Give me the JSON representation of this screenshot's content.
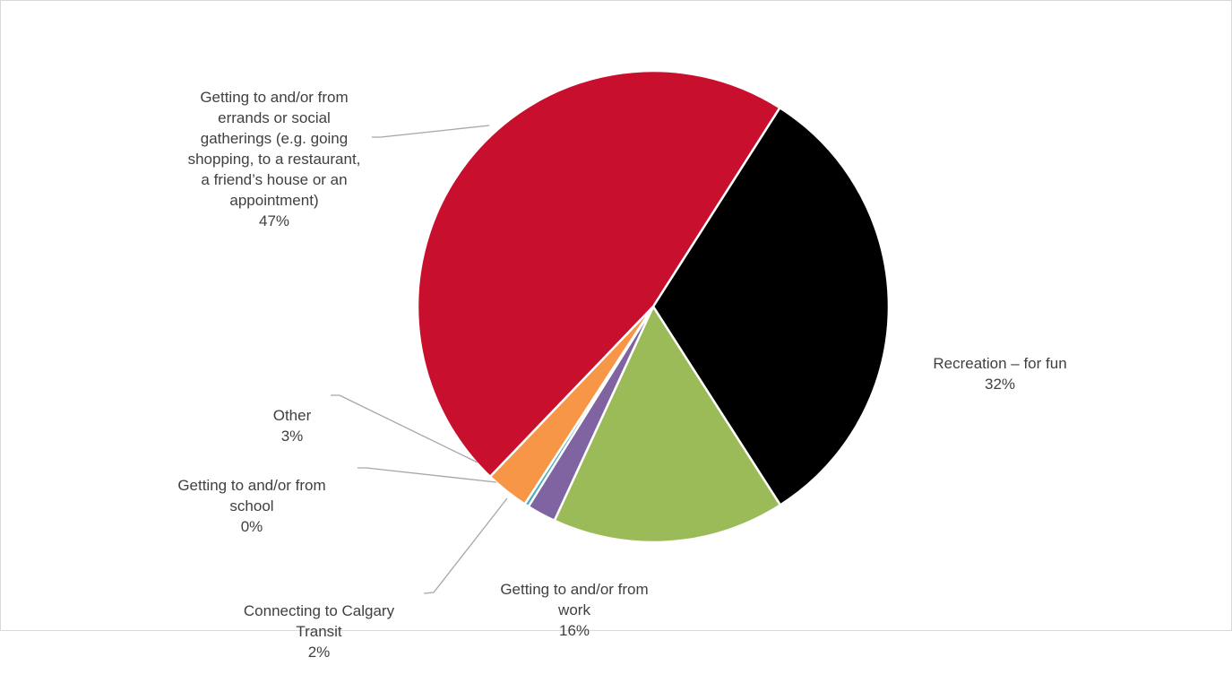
{
  "chart_data": {
    "type": "pie",
    "title": "",
    "legend": "none",
    "slices": [
      {
        "label": "Recreation – for fun",
        "value": 32,
        "display": "32%",
        "color": "#000000"
      },
      {
        "label": "Getting to and/or from\nwork",
        "value": 16,
        "display": "16%",
        "color": "#9bbb59"
      },
      {
        "label": "Connecting to Calgary\nTransit",
        "value": 2,
        "display": "2%",
        "color": "#8064a2"
      },
      {
        "label": "Getting to and/or from\nschool",
        "value": 0.3,
        "display": "0%",
        "color": "#4bacc6"
      },
      {
        "label": "Other",
        "value": 3,
        "display": "3%",
        "color": "#f79646"
      },
      {
        "label": "Getting to and/or from\nerrands or social\ngatherings (e.g. going\nshopping, to a restaurant,\na friend’s house or an\nappointment)",
        "value": 47,
        "display": "47%",
        "color": "#c8102e"
      }
    ]
  }
}
